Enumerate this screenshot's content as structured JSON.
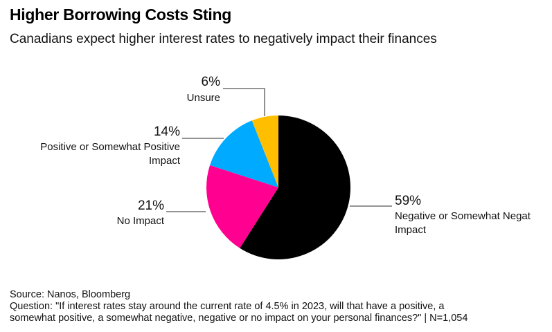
{
  "title": "Higher Borrowing Costs Sting",
  "subtitle": "Canadians expect higher interest rates to negatively impact their finances",
  "chart_data": {
    "type": "pie",
    "title": "Higher Borrowing Costs Sting",
    "subtitle": "Canadians expect higher interest rates to negatively impact their finances",
    "unit": "%",
    "start": "12 o'clock, clockwise",
    "slices": [
      {
        "label": "Negative or Somewhat Negative Impact",
        "display_label": [
          "Negative or Somewhat Negat",
          "Impact"
        ],
        "value": 59,
        "text": "59%",
        "color": "#000000"
      },
      {
        "label": "No Impact",
        "display_label": [
          "No Impact"
        ],
        "value": 21,
        "text": "21%",
        "color": "#ff0090"
      },
      {
        "label": "Positive or Somewhat Positive Impact",
        "display_label": [
          "Positive or Somewhat Positive",
          "Impact"
        ],
        "value": 14,
        "text": "14%",
        "color": "#00aaff"
      },
      {
        "label": "Unsure",
        "display_label": [
          "Unsure"
        ],
        "value": 6,
        "text": "6%",
        "color": "#ffbf00"
      }
    ]
  },
  "footer": {
    "source": "Source: Nanos, Bloomberg",
    "question_line1": "Question: \"If interest rates stay around the current rate of 4.5% in 2023, will that have a positive, a",
    "question_line2": "somewhat positive, a somewhat negative, negative or no impact on your personal finances?\" | N=1,054"
  }
}
